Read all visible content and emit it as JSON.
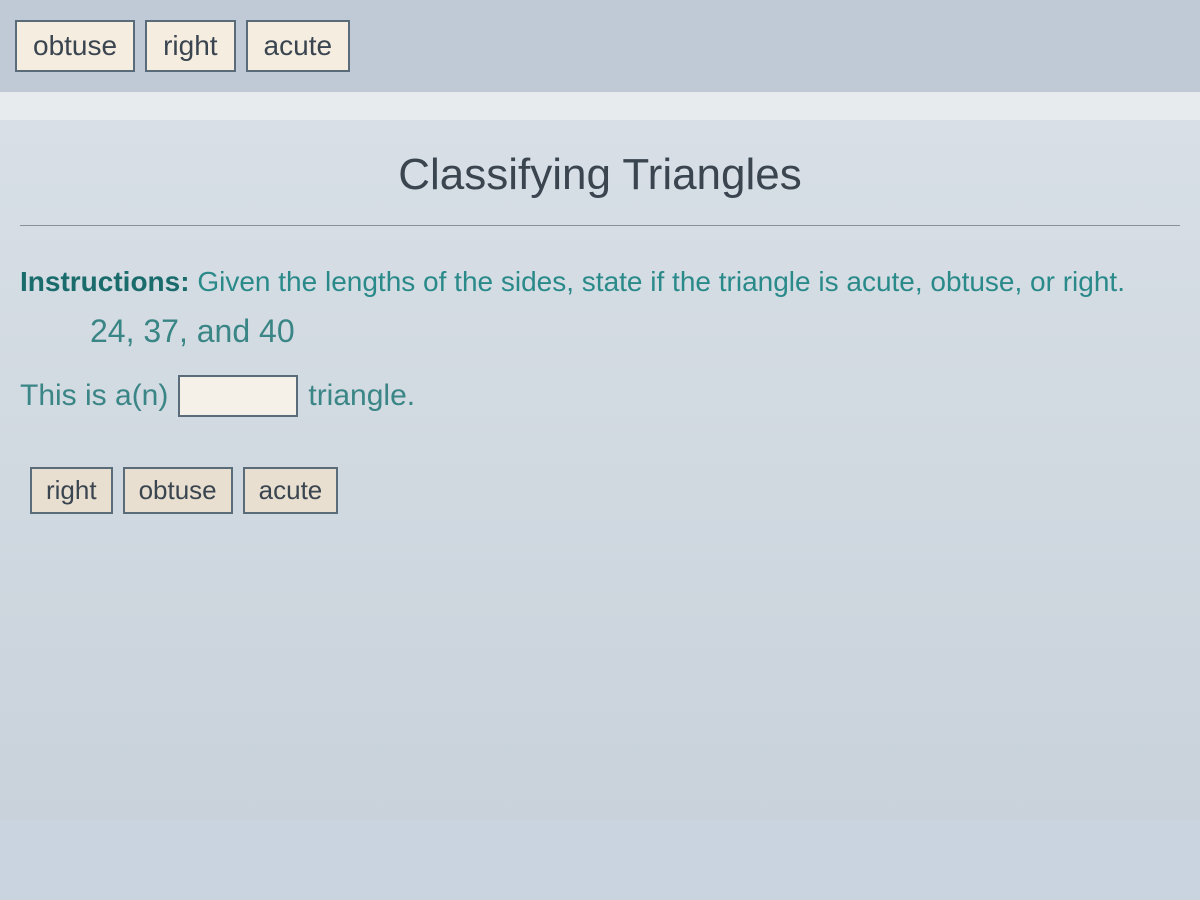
{
  "topBar": {
    "tiles": [
      "obtuse",
      "right",
      "acute"
    ]
  },
  "content": {
    "title": "Classifying Triangles",
    "instructions": {
      "label": "Instructions:",
      "text": "Given the lengths of the sides, state if the triangle is acute, obtuse, or right."
    },
    "sides": "24, 37, and 40",
    "answer": {
      "prefix": "This is a(n)",
      "suffix": "triangle."
    },
    "bottomTiles": [
      "right",
      "obtuse",
      "acute"
    ]
  },
  "colors": {
    "topBarBg": "#bfcad6",
    "tileBg": "#f5ede0",
    "tileBorder": "#5a6b7a",
    "tileText": "#3a4550",
    "separatorBg": "#e8ebed",
    "contentBg": "#d8dfe6",
    "titleText": "#3a4550",
    "instructionsLabel": "#1a6b6b",
    "instructionsText": "#2a8a8a",
    "numbersText": "#3a8585",
    "answerText": "#3a8585",
    "blankBg": "#f5f0e8",
    "bottomTileBg": "#e8dfd0"
  }
}
